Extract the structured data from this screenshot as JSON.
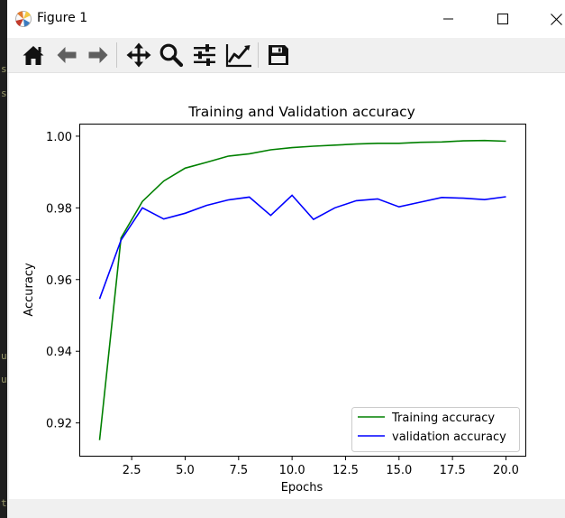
{
  "window": {
    "title": "Figure 1",
    "controls": [
      "minimize",
      "maximize",
      "close"
    ]
  },
  "toolbar": {
    "tools": [
      {
        "name": "home-icon"
      },
      {
        "name": "back-arrow-icon"
      },
      {
        "name": "forward-arrow-icon"
      },
      {
        "name": "pan-icon"
      },
      {
        "name": "zoom-icon"
      },
      {
        "name": "subplots-config-icon"
      },
      {
        "name": "edit-axis-icon"
      },
      {
        "name": "save-icon"
      }
    ]
  },
  "chart_data": {
    "type": "line",
    "title": "Training and Validation accuracy",
    "xlabel": "Epochs",
    "ylabel": "Accuracy",
    "xlim": [
      0.05,
      20.95
    ],
    "ylim": [
      0.9106,
      1.0035
    ],
    "xticks": [
      2.5,
      5.0,
      7.5,
      10.0,
      12.5,
      15.0,
      17.5,
      20.0
    ],
    "xtick_labels": [
      "2.5",
      "5.0",
      "7.5",
      "10.0",
      "12.5",
      "15.0",
      "17.5",
      "20.0"
    ],
    "yticks": [
      0.92,
      0.94,
      0.96,
      0.98,
      1.0
    ],
    "ytick_labels": [
      "0.92",
      "0.94",
      "0.96",
      "0.98",
      "1.00"
    ],
    "legend_position": "lower right",
    "grid": false,
    "series": [
      {
        "name": "Training accuracy",
        "color": "#008000",
        "x": [
          1,
          2,
          3,
          4,
          5,
          6,
          7,
          8,
          9,
          10,
          11,
          12,
          13,
          14,
          15,
          16,
          17,
          18,
          19,
          20
        ],
        "y": [
          0.9152,
          0.9716,
          0.9818,
          0.9875,
          0.9911,
          0.9927,
          0.9944,
          0.9951,
          0.9962,
          0.9968,
          0.9972,
          0.9975,
          0.9978,
          0.998,
          0.998,
          0.9983,
          0.9984,
          0.9987,
          0.9988,
          0.9986
        ]
      },
      {
        "name": "validation accuracy",
        "color": "#0000ff",
        "x": [
          1,
          2,
          3,
          4,
          5,
          6,
          7,
          8,
          9,
          10,
          11,
          12,
          13,
          14,
          15,
          16,
          17,
          18,
          19,
          20
        ],
        "y": [
          0.9546,
          0.971,
          0.98,
          0.9769,
          0.9785,
          0.9807,
          0.9822,
          0.983,
          0.9779,
          0.9835,
          0.9768,
          0.98,
          0.982,
          0.9825,
          0.9803,
          0.9816,
          0.9829,
          0.9827,
          0.9823,
          0.9831
        ]
      }
    ]
  }
}
